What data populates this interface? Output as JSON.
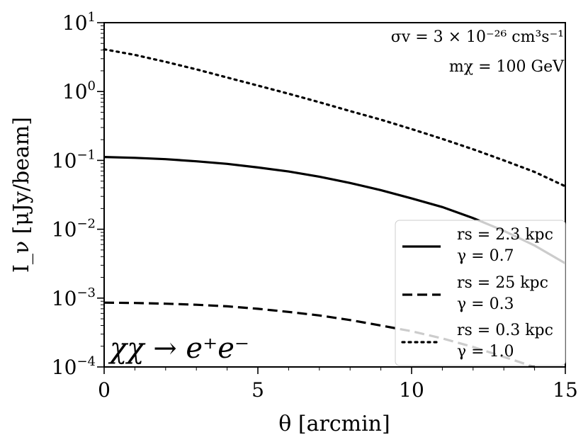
{
  "chart_data": {
    "type": "line",
    "xlabel": "θ [arcmin]",
    "ylabel": "I_ν [μJy/beam]",
    "xlim": [
      0,
      15
    ],
    "ylim": [
      0.0001,
      10
    ],
    "yscale": "log",
    "x_ticks": [
      0,
      5,
      10,
      15
    ],
    "x_tick_labels": [
      "0",
      "5",
      "10",
      "15"
    ],
    "y_ticks": [
      {
        "value": 10,
        "base": "10",
        "exp": "1"
      },
      {
        "value": 1,
        "base": "10",
        "exp": "0"
      },
      {
        "value": 0.1,
        "base": "10",
        "exp": "−1"
      },
      {
        "value": 0.01,
        "base": "10",
        "exp": "−2"
      },
      {
        "value": 0.001,
        "base": "10",
        "exp": "−3"
      },
      {
        "value": 0.0001,
        "base": "10",
        "exp": "−4"
      }
    ],
    "annotations": {
      "cross_section": "σv = 3 × 10⁻²⁶ cm³s⁻¹",
      "mass": "mχ = 100 GeV",
      "process": "χχ → e⁺e⁻"
    },
    "legend_placement": "lower-right",
    "series": [
      {
        "name": "r_s = 2.3 kpc, γ = 0.7",
        "legend_line1": "rs = 2.3 kpc",
        "legend_line2": "γ = 0.7",
        "style": "solid",
        "x": [
          0,
          1,
          2,
          3,
          4,
          5,
          6,
          7,
          8,
          9,
          10,
          11,
          12,
          13,
          14,
          15
        ],
        "y": [
          0.112,
          0.109,
          0.104,
          0.097,
          0.089,
          0.079,
          0.069,
          0.058,
          0.047,
          0.037,
          0.028,
          0.021,
          0.0145,
          0.0095,
          0.0058,
          0.0032
        ]
      },
      {
        "name": "r_s = 25 kpc, γ = 0.3",
        "legend_line1": "rs = 25 kpc",
        "legend_line2": "γ = 0.3",
        "style": "dashed",
        "x": [
          0,
          1,
          2,
          3,
          4,
          5,
          6,
          7,
          8,
          9,
          10,
          11,
          12,
          13,
          14
        ],
        "y": [
          0.00086,
          0.00085,
          0.00083,
          0.0008,
          0.00076,
          0.0007,
          0.00063,
          0.00056,
          0.00048,
          0.0004,
          0.00033,
          0.00026,
          0.000195,
          0.00014,
          0.0001
        ]
      },
      {
        "name": "r_s = 0.3 kpc, γ = 1.0",
        "legend_line1": "rs = 0.3 kpc",
        "legend_line2": "γ = 1.0",
        "style": "dotted",
        "x": [
          0,
          1,
          2,
          3,
          4,
          5,
          6,
          7,
          8,
          9,
          10,
          11,
          12,
          13,
          14,
          15
        ],
        "y": [
          4.1,
          3.4,
          2.7,
          2.1,
          1.6,
          1.22,
          0.93,
          0.7,
          0.52,
          0.39,
          0.285,
          0.205,
          0.145,
          0.1,
          0.068,
          0.042
        ]
      }
    ]
  }
}
